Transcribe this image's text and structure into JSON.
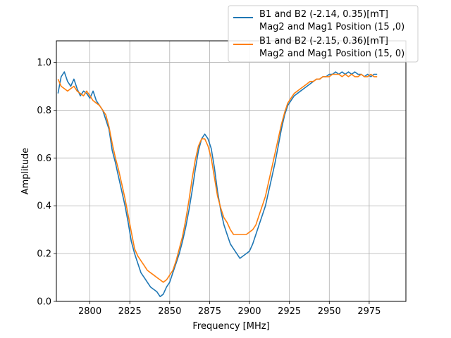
{
  "chart_data": {
    "type": "line",
    "title": "",
    "xlabel": "Frequency [MHz]",
    "ylabel": "Amplitude",
    "xlim": [
      2779,
      2998
    ],
    "ylim": [
      0,
      1.09
    ],
    "x_ticks": [
      2800,
      2825,
      2850,
      2875,
      2900,
      2925,
      2950,
      2975
    ],
    "y_ticks": [
      0.0,
      0.2,
      0.4,
      0.6,
      0.8,
      1.0
    ],
    "x_tick_labels": [
      "2800",
      "2825",
      "2850",
      "2875",
      "2900",
      "2925",
      "2950",
      "2975"
    ],
    "y_tick_labels": [
      "0.0",
      "0.2",
      "0.4",
      "0.6",
      "0.8",
      "1.0"
    ],
    "grid": true,
    "legend_position": "top-right",
    "series": [
      {
        "name_lines": [
          "B1 and B2 (-2.14, 0.35)[mT]",
          "Mag2 and Mag1 Position (15 ,0)"
        ],
        "color": "#1f77b4",
        "x": [
          2780,
          2782,
          2784,
          2786,
          2788,
          2790,
          2792,
          2794,
          2796,
          2798,
          2800,
          2802,
          2804,
          2806,
          2808,
          2810,
          2812,
          2814,
          2816,
          2818,
          2820,
          2822,
          2824,
          2826,
          2828,
          2830,
          2832,
          2834,
          2836,
          2838,
          2840,
          2842,
          2844,
          2846,
          2848,
          2850,
          2852,
          2854,
          2856,
          2858,
          2860,
          2862,
          2864,
          2866,
          2868,
          2870,
          2872,
          2874,
          2876,
          2878,
          2880,
          2882,
          2884,
          2886,
          2888,
          2890,
          2892,
          2894,
          2896,
          2898,
          2900,
          2902,
          2904,
          2906,
          2908,
          2910,
          2912,
          2914,
          2916,
          2918,
          2920,
          2922,
          2924,
          2926,
          2928,
          2930,
          2932,
          2934,
          2936,
          2938,
          2940,
          2942,
          2944,
          2946,
          2948,
          2950,
          2952,
          2954,
          2956,
          2958,
          2960,
          2962,
          2964,
          2966,
          2968,
          2970,
          2972,
          2974,
          2976,
          2978,
          2980
        ],
        "values": [
          0.87,
          0.94,
          0.96,
          0.92,
          0.9,
          0.93,
          0.89,
          0.86,
          0.88,
          0.87,
          0.85,
          0.88,
          0.84,
          0.82,
          0.8,
          0.76,
          0.72,
          0.63,
          0.58,
          0.52,
          0.46,
          0.4,
          0.33,
          0.25,
          0.2,
          0.16,
          0.12,
          0.1,
          0.08,
          0.06,
          0.05,
          0.04,
          0.02,
          0.03,
          0.06,
          0.08,
          0.12,
          0.16,
          0.2,
          0.25,
          0.31,
          0.38,
          0.46,
          0.55,
          0.63,
          0.68,
          0.7,
          0.68,
          0.64,
          0.56,
          0.46,
          0.38,
          0.32,
          0.28,
          0.24,
          0.22,
          0.2,
          0.18,
          0.19,
          0.2,
          0.21,
          0.24,
          0.28,
          0.32,
          0.36,
          0.4,
          0.46,
          0.52,
          0.58,
          0.65,
          0.72,
          0.78,
          0.82,
          0.84,
          0.86,
          0.87,
          0.88,
          0.89,
          0.9,
          0.91,
          0.92,
          0.93,
          0.93,
          0.94,
          0.94,
          0.95,
          0.95,
          0.96,
          0.95,
          0.96,
          0.95,
          0.96,
          0.95,
          0.96,
          0.95,
          0.95,
          0.94,
          0.95,
          0.94,
          0.95,
          0.95
        ]
      },
      {
        "name_lines": [
          "B1 and B2 (-2.15, 0.36)[mT]",
          "Mag2 and Mag1 Position (15, 0)"
        ],
        "color": "#ff7f0e",
        "x": [
          2780,
          2782,
          2784,
          2786,
          2788,
          2790,
          2792,
          2794,
          2796,
          2798,
          2800,
          2802,
          2804,
          2806,
          2808,
          2810,
          2812,
          2814,
          2816,
          2818,
          2820,
          2822,
          2824,
          2826,
          2828,
          2830,
          2832,
          2834,
          2836,
          2838,
          2840,
          2842,
          2844,
          2846,
          2848,
          2850,
          2852,
          2854,
          2856,
          2858,
          2860,
          2862,
          2864,
          2866,
          2868,
          2870,
          2872,
          2874,
          2876,
          2878,
          2880,
          2882,
          2884,
          2886,
          2888,
          2890,
          2892,
          2894,
          2896,
          2898,
          2900,
          2902,
          2904,
          2906,
          2908,
          2910,
          2912,
          2914,
          2916,
          2918,
          2920,
          2922,
          2924,
          2926,
          2928,
          2930,
          2932,
          2934,
          2936,
          2938,
          2940,
          2942,
          2944,
          2946,
          2948,
          2950,
          2952,
          2954,
          2956,
          2958,
          2960,
          2962,
          2964,
          2966,
          2968,
          2970,
          2972,
          2974,
          2976,
          2978,
          2980
        ],
        "values": [
          0.93,
          0.9,
          0.89,
          0.88,
          0.89,
          0.9,
          0.88,
          0.87,
          0.86,
          0.88,
          0.86,
          0.84,
          0.83,
          0.82,
          0.8,
          0.78,
          0.73,
          0.66,
          0.6,
          0.55,
          0.49,
          0.43,
          0.36,
          0.29,
          0.22,
          0.19,
          0.17,
          0.15,
          0.13,
          0.12,
          0.11,
          0.1,
          0.09,
          0.08,
          0.09,
          0.11,
          0.13,
          0.17,
          0.22,
          0.27,
          0.34,
          0.42,
          0.51,
          0.59,
          0.65,
          0.68,
          0.68,
          0.65,
          0.6,
          0.52,
          0.44,
          0.39,
          0.35,
          0.33,
          0.3,
          0.28,
          0.28,
          0.28,
          0.28,
          0.28,
          0.29,
          0.3,
          0.32,
          0.36,
          0.4,
          0.44,
          0.5,
          0.56,
          0.62,
          0.68,
          0.74,
          0.79,
          0.83,
          0.85,
          0.87,
          0.88,
          0.89,
          0.9,
          0.91,
          0.92,
          0.92,
          0.93,
          0.93,
          0.94,
          0.94,
          0.94,
          0.95,
          0.95,
          0.95,
          0.94,
          0.95,
          0.94,
          0.95,
          0.94,
          0.94,
          0.95,
          0.94,
          0.94,
          0.95,
          0.94,
          0.94
        ]
      }
    ]
  }
}
